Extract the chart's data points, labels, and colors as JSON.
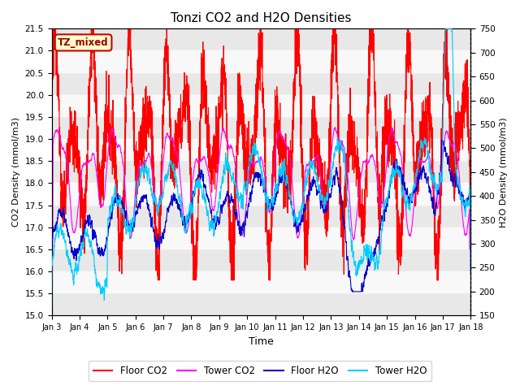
{
  "title": "Tonzi CO2 and H2O Densities",
  "xlabel": "Time",
  "ylabel_left": "CO2 Density (mmol/m3)",
  "ylabel_right": "H2O Density (mmol/m3)",
  "ylim_left": [
    15.0,
    21.5
  ],
  "ylim_right": [
    150,
    750
  ],
  "yticks_left": [
    15.0,
    15.5,
    16.0,
    16.5,
    17.0,
    17.5,
    18.0,
    18.5,
    19.0,
    19.5,
    20.0,
    20.5,
    21.0,
    21.5
  ],
  "yticks_right": [
    150,
    200,
    250,
    300,
    350,
    400,
    450,
    500,
    550,
    600,
    650,
    700,
    750
  ],
  "xtick_labels": [
    "Jan 3",
    "Jan 4",
    "Jan 5",
    "Jan 6",
    "Jan 7",
    "Jan 8",
    "Jan 9",
    "Jan 10",
    "Jan 11",
    "Jan 12",
    "Jan 13",
    "Jan 14",
    "Jan 15",
    "Jan 16",
    "Jan 17",
    "Jan 18"
  ],
  "annotation_text": "TZ_mixed",
  "annotation_color": "#990000",
  "annotation_bg": "#ffffcc",
  "annotation_edge": "#cc0000",
  "colors": {
    "floor_co2": "#ff0000",
    "tower_co2": "#ff00ff",
    "floor_h2o": "#0000cc",
    "tower_h2o": "#00ccff"
  },
  "legend_labels": [
    "Floor CO2",
    "Tower CO2",
    "Floor H2O",
    "Tower H2O"
  ],
  "band_colors": [
    "#e8e8e8",
    "#f8f8f8"
  ],
  "n_points": 3000,
  "seed": 12345
}
